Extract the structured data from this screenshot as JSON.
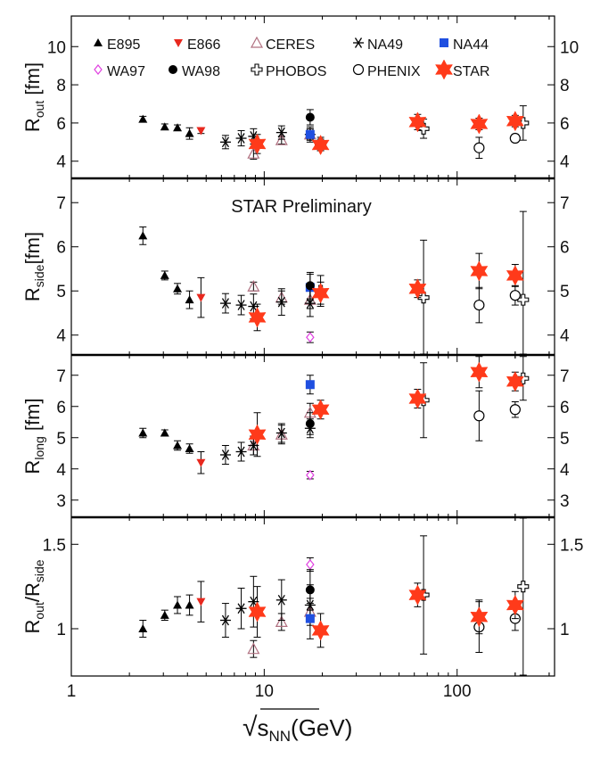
{
  "chart_data": {
    "type": "scatter",
    "x_label": "√sNN (GeV)",
    "x_label_parts": {
      "radical": "√",
      "base": "s",
      "sub": "NN",
      "rest": "(GeV)"
    },
    "x_scale": "log",
    "xlim": [
      1,
      320
    ],
    "x_ticks": [
      1,
      10,
      100
    ],
    "x_tick_labels": [
      "1",
      "10",
      "100"
    ],
    "annotation": "STAR Preliminary",
    "legend": [
      {
        "name": "E895",
        "symbol": "triangle-up",
        "color": "#000000"
      },
      {
        "name": "E866",
        "symbol": "triangle-down",
        "color": "#e8281e"
      },
      {
        "name": "CERES",
        "symbol": "triangle-open",
        "color": "#b07080"
      },
      {
        "name": "NA49",
        "symbol": "asterisk",
        "color": "#000000"
      },
      {
        "name": "NA44",
        "symbol": "square",
        "color": "#1f4fe0"
      },
      {
        "name": "WA97",
        "symbol": "diamond-open",
        "color": "#e040e0"
      },
      {
        "name": "WA98",
        "symbol": "circle",
        "color": "#000000"
      },
      {
        "name": "PHOBOS",
        "symbol": "cross-open",
        "color": "#000000"
      },
      {
        "name": "PHENIX",
        "symbol": "circle-open",
        "color": "#000000"
      },
      {
        "name": "STAR",
        "symbol": "star",
        "color": "#ff3a1a"
      }
    ],
    "panels": [
      {
        "id": "rout",
        "y_label": "Rout [fm]",
        "y_label_parts": {
          "base": "R",
          "sub": "out",
          "rest": " [fm]"
        },
        "ylim": [
          3.1,
          11.6
        ],
        "y_ticks": [
          4,
          6,
          8,
          10
        ],
        "y_tick_labels": [
          "4",
          "6",
          "8",
          "10"
        ],
        "series": [
          {
            "name": "E895",
            "points": [
              [
                2.35,
                6.2,
                0.15
              ],
              [
                3.05,
                5.8,
                0.15
              ],
              [
                3.55,
                5.75,
                0.15
              ],
              [
                4.1,
                5.45,
                0.3
              ]
            ]
          },
          {
            "name": "E866",
            "points": [
              [
                4.7,
                5.6,
                0.15
              ]
            ]
          },
          {
            "name": "CERES",
            "points": [
              [
                8.8,
                4.4,
                0.3
              ],
              [
                12.3,
                5.1,
                0.2
              ],
              [
                17.3,
                5.4,
                0.3
              ]
            ]
          },
          {
            "name": "NA49",
            "points": [
              [
                6.3,
                5.0,
                0.35
              ],
              [
                7.6,
                5.2,
                0.4
              ],
              [
                8.8,
                5.3,
                0.4
              ],
              [
                12.3,
                5.5,
                0.35
              ],
              [
                17.3,
                5.4,
                0.4
              ]
            ]
          },
          {
            "name": "NA44",
            "points": [
              [
                17.3,
                5.4,
                0.3
              ]
            ]
          },
          {
            "name": "WA98",
            "points": [
              [
                17.3,
                6.3,
                0.4
              ]
            ]
          },
          {
            "name": "PHOBOS",
            "points": [
              [
                19.6,
                4.9,
                0.35
              ],
              [
                67,
                5.7,
                0.5
              ],
              [
                220,
                6.0,
                0.9
              ]
            ]
          },
          {
            "name": "PHENIX",
            "points": [
              [
                130,
                4.7,
                0.55
              ],
              [
                200,
                5.2,
                0.2
              ]
            ]
          },
          {
            "name": "STAR",
            "points": [
              [
                9.2,
                4.9,
                0.5
              ],
              [
                19.6,
                4.85,
                0.3
              ],
              [
                62.4,
                6.05,
                0.4
              ],
              [
                130,
                5.95,
                0.3
              ],
              [
                200,
                6.1,
                0.3
              ]
            ]
          }
        ]
      },
      {
        "id": "rside",
        "y_label": "Rside[fm]",
        "y_label_parts": {
          "base": "R",
          "sub": "side",
          "rest": "[fm]"
        },
        "ylim": [
          3.55,
          7.55
        ],
        "y_ticks": [
          4,
          5,
          6,
          7
        ],
        "y_tick_labels": [
          "4",
          "5",
          "6",
          "7"
        ],
        "series": [
          {
            "name": "E895",
            "points": [
              [
                2.35,
                6.25,
                0.2
              ],
              [
                3.05,
                5.35,
                0.1
              ],
              [
                3.55,
                5.05,
                0.12
              ],
              [
                4.1,
                4.8,
                0.2
              ]
            ]
          },
          {
            "name": "E866",
            "points": [
              [
                4.7,
                4.85,
                0.45
              ]
            ]
          },
          {
            "name": "CERES",
            "points": [
              [
                8.8,
                5.1,
                0.1
              ],
              [
                12.3,
                4.85,
                0.15
              ],
              [
                17.3,
                4.8,
                0.2
              ]
            ]
          },
          {
            "name": "NA49",
            "points": [
              [
                6.3,
                4.72,
                0.22
              ],
              [
                7.6,
                4.68,
                0.22
              ],
              [
                8.8,
                4.65,
                0.28
              ],
              [
                12.3,
                4.75,
                0.3
              ],
              [
                17.3,
                4.72,
                0.3
              ]
            ]
          },
          {
            "name": "NA44",
            "points": [
              [
                17.3,
                5.08,
                0.3
              ]
            ]
          },
          {
            "name": "WA97",
            "points": [
              [
                17.3,
                3.95,
                0.12
              ]
            ]
          },
          {
            "name": "WA98",
            "points": [
              [
                17.3,
                5.12,
                0.3
              ]
            ]
          },
          {
            "name": "PHOBOS",
            "points": [
              [
                19.6,
                5.0,
                0.35
              ],
              [
                67,
                4.85,
                1.3
              ],
              [
                220,
                4.8,
                2.0
              ]
            ]
          },
          {
            "name": "PHENIX",
            "points": [
              [
                130,
                4.68,
                0.4
              ],
              [
                200,
                4.9,
                0.22
              ]
            ]
          },
          {
            "name": "STAR",
            "points": [
              [
                9.2,
                4.4,
                0.3
              ],
              [
                19.6,
                4.95,
                0.25
              ],
              [
                62.4,
                5.05,
                0.2
              ],
              [
                130,
                5.45,
                0.4
              ],
              [
                200,
                5.35,
                0.25
              ]
            ]
          }
        ]
      },
      {
        "id": "rlong",
        "y_label": "Rlong [fm]",
        "y_label_parts": {
          "base": "R",
          "sub": "long",
          "rest": " [fm]"
        },
        "ylim": [
          2.45,
          7.65
        ],
        "y_ticks": [
          3,
          4,
          5,
          6,
          7
        ],
        "y_tick_labels": [
          "3",
          "4",
          "5",
          "6",
          "7"
        ],
        "series": [
          {
            "name": "E895",
            "points": [
              [
                2.35,
                5.15,
                0.15
              ],
              [
                3.05,
                5.15,
                0.1
              ],
              [
                3.55,
                4.75,
                0.15
              ],
              [
                4.1,
                4.65,
                0.15
              ]
            ]
          },
          {
            "name": "E866",
            "points": [
              [
                4.7,
                4.2,
                0.35
              ]
            ]
          },
          {
            "name": "CERES",
            "points": [
              [
                8.8,
                4.75,
                0.3
              ],
              [
                12.3,
                5.1,
                0.3
              ],
              [
                17.3,
                5.8,
                0.3
              ]
            ]
          },
          {
            "name": "NA49",
            "points": [
              [
                6.3,
                4.45,
                0.3
              ],
              [
                7.6,
                4.55,
                0.3
              ],
              [
                8.8,
                4.75,
                0.3
              ],
              [
                12.3,
                5.15,
                0.3
              ],
              [
                17.3,
                5.3,
                0.3
              ]
            ]
          },
          {
            "name": "NA44",
            "points": [
              [
                17.3,
                6.7,
                0.3
              ]
            ]
          },
          {
            "name": "WA97",
            "points": [
              [
                17.3,
                3.8,
                0.12
              ]
            ]
          },
          {
            "name": "WA98",
            "points": [
              [
                17.3,
                5.45,
                0.35
              ]
            ]
          },
          {
            "name": "PHOBOS",
            "points": [
              [
                67,
                6.2,
                1.2
              ],
              [
                220,
                6.9,
                0.7
              ]
            ]
          },
          {
            "name": "PHENIX",
            "points": [
              [
                130,
                5.7,
                0.8
              ],
              [
                200,
                5.9,
                0.25
              ]
            ]
          },
          {
            "name": "STAR",
            "points": [
              [
                9.2,
                5.1,
                0.7
              ],
              [
                19.6,
                5.9,
                0.3
              ],
              [
                62.4,
                6.25,
                0.3
              ],
              [
                130,
                7.1,
                0.5
              ],
              [
                200,
                6.8,
                0.3
              ]
            ]
          }
        ]
      },
      {
        "id": "ratio",
        "y_label": "Rout/Rside",
        "y_label_parts": {
          "base": "R",
          "sub": "out",
          "mid": "/R",
          "sub2": "side"
        },
        "ylim": [
          0.72,
          1.66
        ],
        "y_ticks": [
          1,
          1.5
        ],
        "y_tick_labels": [
          "1",
          "1.5"
        ],
        "series": [
          {
            "name": "E895",
            "points": [
              [
                2.35,
                1.0,
                0.05
              ],
              [
                3.05,
                1.08,
                0.03
              ],
              [
                3.55,
                1.14,
                0.05
              ],
              [
                4.1,
                1.14,
                0.06
              ]
            ]
          },
          {
            "name": "E866",
            "points": [
              [
                4.7,
                1.16,
                0.12
              ]
            ]
          },
          {
            "name": "CERES",
            "points": [
              [
                8.8,
                0.88,
                0.05
              ],
              [
                12.3,
                1.04,
                0.05
              ],
              [
                17.3,
                1.1,
                0.05
              ]
            ]
          },
          {
            "name": "NA49",
            "points": [
              [
                6.3,
                1.05,
                0.1
              ],
              [
                7.6,
                1.12,
                0.12
              ],
              [
                8.8,
                1.16,
                0.15
              ],
              [
                12.3,
                1.17,
                0.12
              ],
              [
                17.3,
                1.14,
                0.12
              ]
            ]
          },
          {
            "name": "NA44",
            "points": [
              [
                17.3,
                1.06,
                0.12
              ]
            ]
          },
          {
            "name": "WA97",
            "points": [
              [
                17.3,
                1.38,
                0.04
              ]
            ]
          },
          {
            "name": "WA98",
            "points": [
              [
                17.3,
                1.23,
                0.12
              ]
            ]
          },
          {
            "name": "PHOBOS",
            "points": [
              [
                67,
                1.2,
                0.35
              ],
              [
                220,
                1.25,
                0.55
              ]
            ]
          },
          {
            "name": "PHENIX",
            "points": [
              [
                130,
                1.01,
                0.15
              ],
              [
                200,
                1.06,
                0.07
              ]
            ]
          },
          {
            "name": "STAR",
            "points": [
              [
                9.2,
                1.1,
                0.15
              ],
              [
                19.6,
                0.99,
                0.1
              ],
              [
                62.4,
                1.2,
                0.07
              ],
              [
                130,
                1.07,
                0.1
              ],
              [
                200,
                1.14,
                0.08
              ]
            ]
          }
        ]
      }
    ]
  }
}
